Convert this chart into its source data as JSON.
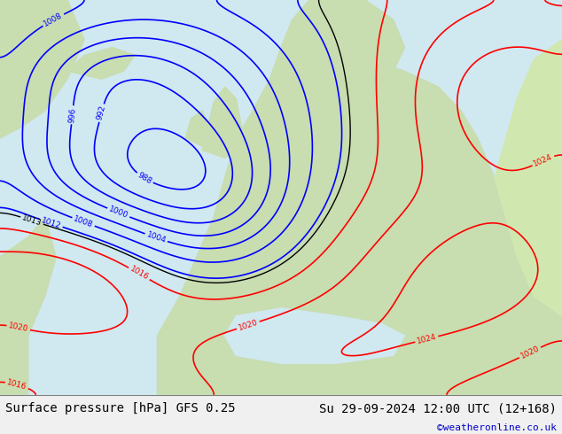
{
  "title_left": "Surface pressure [hPa] GFS 0.25",
  "title_right": "Su 29-09-2024 12:00 UTC (12+168)",
  "credit": "©weatheronline.co.uk",
  "bg_color": "#f0f0f0",
  "map_bg": "#c8e6c8",
  "sea_color": "#d0e8f0",
  "land_color": "#c8ddb0",
  "bottom_bar_color": "#e8e8e8",
  "title_fontsize": 10,
  "credit_color": "#0000cc",
  "figsize": [
    6.34,
    4.9
  ],
  "dpi": 100
}
